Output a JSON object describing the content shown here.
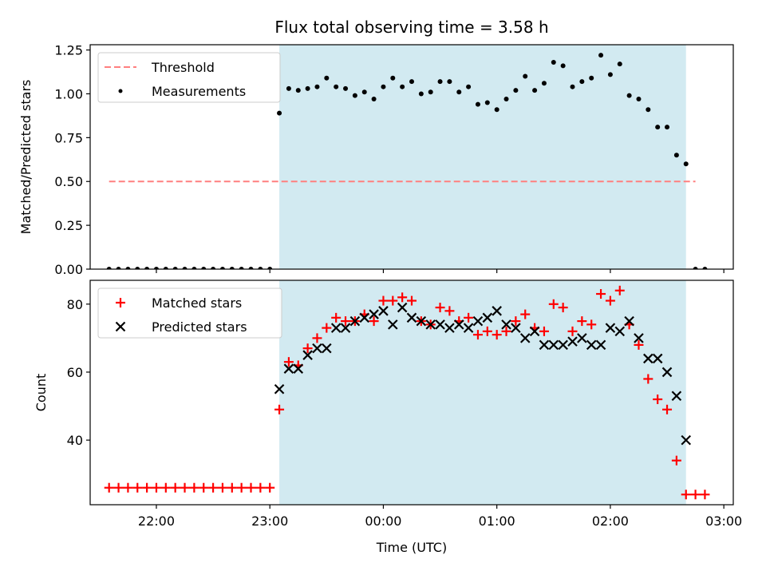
{
  "title": "Flux total observing time = 3.58 h",
  "colors": {
    "shade": "#add8e6",
    "threshold": "#ff7f7f",
    "matched": "#ff0000",
    "predicted": "#000000",
    "measurements": "#000000"
  },
  "chart_data": [
    {
      "type": "scatter",
      "ylabel": "Matched/Predicted stars",
      "ylim": [
        0,
        1.28
      ],
      "yticks": [
        0.0,
        0.25,
        0.5,
        0.75,
        1.0,
        1.25
      ],
      "ytick_labels": [
        "0.00",
        "0.25",
        "0.50",
        "0.75",
        "1.00",
        "1.25"
      ],
      "shaded_interval": [
        "23:05",
        "02:40"
      ],
      "legend_position": "upper-left",
      "legend": [
        {
          "key": "threshold",
          "label": "Threshold",
          "marker": "dash"
        },
        {
          "key": "measurements",
          "label": "Measurements",
          "marker": "dot"
        }
      ],
      "threshold": {
        "y": 0.5,
        "x_range": [
          "21:35",
          "02:45"
        ]
      },
      "x_times": [
        "21:35",
        "21:40",
        "21:45",
        "21:50",
        "21:55",
        "22:00",
        "22:05",
        "22:10",
        "22:15",
        "22:20",
        "22:25",
        "22:30",
        "22:35",
        "22:40",
        "22:45",
        "22:50",
        "22:55",
        "23:00",
        "23:05",
        "23:10",
        "23:15",
        "23:20",
        "23:25",
        "23:30",
        "23:35",
        "23:40",
        "23:45",
        "23:50",
        "23:55",
        "00:00",
        "00:05",
        "00:10",
        "00:15",
        "00:20",
        "00:25",
        "00:30",
        "00:35",
        "00:40",
        "00:45",
        "00:50",
        "00:55",
        "01:00",
        "01:05",
        "01:10",
        "01:15",
        "01:20",
        "01:25",
        "01:30",
        "01:35",
        "01:40",
        "01:45",
        "01:50",
        "01:55",
        "02:00",
        "02:05",
        "02:10",
        "02:15",
        "02:20",
        "02:25",
        "02:30",
        "02:35",
        "02:40",
        "02:45",
        "02:50"
      ],
      "measurements": [
        0,
        0,
        0,
        0,
        0,
        0,
        0,
        0,
        0,
        0,
        0,
        0,
        0,
        0,
        0,
        0,
        0,
        0,
        0.89,
        1.03,
        1.02,
        1.03,
        1.04,
        1.09,
        1.04,
        1.03,
        0.99,
        1.01,
        0.97,
        1.04,
        1.09,
        1.04,
        1.07,
        1.0,
        1.01,
        1.07,
        1.07,
        1.01,
        1.04,
        0.94,
        0.95,
        0.91,
        0.97,
        1.02,
        1.1,
        1.02,
        1.06,
        1.18,
        1.16,
        1.04,
        1.07,
        1.09,
        1.22,
        1.11,
        1.17,
        0.99,
        0.97,
        0.91,
        0.81,
        0.81,
        0.65,
        0.6,
        0,
        0
      ]
    },
    {
      "type": "scatter",
      "xlabel": "Time (UTC)",
      "ylabel": "Count",
      "ylim": [
        21,
        87
      ],
      "yticks": [
        40,
        60,
        80
      ],
      "ytick_labels": [
        "40",
        "60",
        "80"
      ],
      "xlim": [
        "21:25",
        "03:05"
      ],
      "xticks": [
        "22:00",
        "23:00",
        "00:00",
        "01:00",
        "02:00",
        "03:00"
      ],
      "shaded_interval": [
        "23:05",
        "02:40"
      ],
      "legend_position": "upper-left",
      "legend": [
        {
          "key": "matched",
          "label": "Matched stars",
          "marker": "plus"
        },
        {
          "key": "predicted",
          "label": "Predicted stars",
          "marker": "x"
        }
      ],
      "x_times_matched": [
        "21:35",
        "21:40",
        "21:45",
        "21:50",
        "21:55",
        "22:00",
        "22:05",
        "22:10",
        "22:15",
        "22:20",
        "22:25",
        "22:30",
        "22:35",
        "22:40",
        "22:45",
        "22:50",
        "22:55",
        "23:00",
        "23:05",
        "23:10",
        "23:15",
        "23:20",
        "23:25",
        "23:30",
        "23:35",
        "23:40",
        "23:45",
        "23:50",
        "23:55",
        "00:00",
        "00:05",
        "00:10",
        "00:15",
        "00:20",
        "00:25",
        "00:30",
        "00:35",
        "00:40",
        "00:45",
        "00:50",
        "00:55",
        "01:00",
        "01:05",
        "01:10",
        "01:15",
        "01:20",
        "01:25",
        "01:30",
        "01:35",
        "01:40",
        "01:45",
        "01:50",
        "01:55",
        "02:00",
        "02:05",
        "02:10",
        "02:15",
        "02:20",
        "02:25",
        "02:30",
        "02:35",
        "02:40",
        "02:45",
        "02:50"
      ],
      "matched": [
        26,
        26,
        26,
        26,
        26,
        26,
        26,
        26,
        26,
        26,
        26,
        26,
        26,
        26,
        26,
        26,
        26,
        26,
        49,
        63,
        62,
        67,
        70,
        73,
        76,
        75,
        75,
        77,
        75,
        81,
        81,
        82,
        81,
        75,
        74,
        79,
        78,
        75,
        76,
        71,
        72,
        71,
        72,
        75,
        77,
        73,
        72,
        80,
        79,
        72,
        75,
        74,
        83,
        81,
        84,
        74,
        68,
        58,
        52,
        49,
        34,
        24,
        24,
        24
      ],
      "x_times_predicted": [
        "23:05",
        "23:10",
        "23:15",
        "23:20",
        "23:25",
        "23:30",
        "23:35",
        "23:40",
        "23:45",
        "23:50",
        "23:55",
        "00:00",
        "00:05",
        "00:10",
        "00:15",
        "00:20",
        "00:25",
        "00:30",
        "00:35",
        "00:40",
        "00:45",
        "00:50",
        "00:55",
        "01:00",
        "01:05",
        "01:10",
        "01:15",
        "01:20",
        "01:25",
        "01:30",
        "01:35",
        "01:40",
        "01:45",
        "01:50",
        "01:55",
        "02:00",
        "02:05",
        "02:10",
        "02:15",
        "02:20",
        "02:25",
        "02:30",
        "02:35",
        "02:40"
      ],
      "predicted": [
        55,
        61,
        61,
        65,
        67,
        67,
        73,
        73,
        75,
        76,
        77,
        78,
        74,
        79,
        76,
        75,
        74,
        74,
        73,
        74,
        73,
        75,
        76,
        78,
        74,
        73,
        70,
        72,
        68,
        68,
        68,
        69,
        70,
        68,
        68,
        73,
        72,
        75,
        70,
        64,
        64,
        60,
        53,
        40
      ]
    }
  ]
}
